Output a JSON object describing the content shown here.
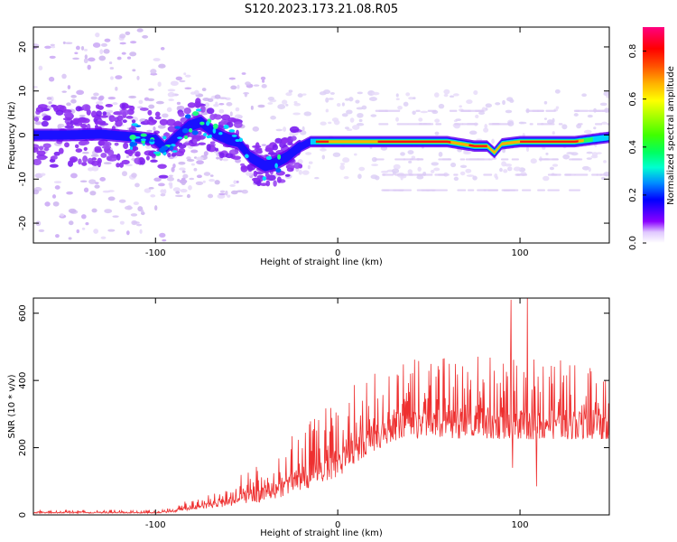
{
  "title": "S120.2023.173.21.08.R05",
  "colors": {
    "snr_line": "#ee3030",
    "frame": "#000000",
    "scatter_faint": "#d8c4f4"
  },
  "chart_data": [
    {
      "type": "heatmap",
      "xlabel": "Height of straight line (km)",
      "ylabel": "Frequency (Hz)",
      "xlim": [
        -167,
        149
      ],
      "ylim": [
        -24.5,
        24.5
      ],
      "xticks": [
        -100,
        0,
        100
      ],
      "yticks": [
        -20,
        -10,
        0,
        10,
        20
      ],
      "colorbar": {
        "label": "Normalized spectral amplitude",
        "range": [
          0.0,
          0.9
        ],
        "ticks": [
          "0.0",
          "0.2",
          "0.4",
          "0.6",
          "0.8"
        ],
        "colormap": "gist_ncar"
      },
      "ridge": {
        "description_points": [
          [
            -167,
            0
          ],
          [
            -150,
            0
          ],
          [
            -130,
            0.2
          ],
          [
            -110,
            -0.5
          ],
          [
            -100,
            -1
          ],
          [
            -95,
            -3
          ],
          [
            -90,
            -1
          ],
          [
            -82,
            2
          ],
          [
            -75,
            3
          ],
          [
            -68,
            0.5
          ],
          [
            -60,
            -1
          ],
          [
            -55,
            -1.5
          ],
          [
            -48,
            -5
          ],
          [
            -40,
            -7
          ],
          [
            -35,
            -6.5
          ],
          [
            -28,
            -5
          ],
          [
            -22,
            -3
          ],
          [
            -15,
            -1.5
          ],
          [
            -5,
            -1.5
          ],
          [
            10,
            -1.5
          ],
          [
            30,
            -1.5
          ],
          [
            60,
            -1.5
          ],
          [
            75,
            -2.5
          ],
          [
            82,
            -2.5
          ],
          [
            86,
            -4
          ],
          [
            90,
            -2
          ],
          [
            100,
            -1.5
          ],
          [
            130,
            -1.5
          ],
          [
            149,
            -0.5
          ]
        ]
      }
    },
    {
      "type": "line",
      "xlabel": "Height of straight line (km)",
      "ylabel": "SNR (10 * v/v)",
      "xlim": [
        -167,
        149
      ],
      "ylim": [
        0,
        645
      ],
      "xticks": [
        -100,
        0,
        100
      ],
      "yticks": [
        0,
        200,
        400,
        600
      ],
      "envelope": {
        "x": [
          -167,
          -100,
          -90,
          -80,
          -60,
          -40,
          -20,
          0,
          15,
          30,
          50,
          80,
          100,
          120,
          149
        ],
        "base": [
          5,
          5,
          8,
          15,
          25,
          40,
          70,
          110,
          175,
          220,
          230,
          225,
          225,
          225,
          225
        ],
        "peak": [
          15,
          15,
          25,
          50,
          100,
          160,
          270,
          350,
          410,
          450,
          470,
          480,
          470,
          470,
          460
        ]
      },
      "spikes": [
        {
          "x": 95,
          "y": 640
        },
        {
          "x": 104,
          "y": 655
        }
      ],
      "dips": [
        {
          "x": 96,
          "y": 140
        },
        {
          "x": 109,
          "y": 85
        }
      ]
    }
  ]
}
